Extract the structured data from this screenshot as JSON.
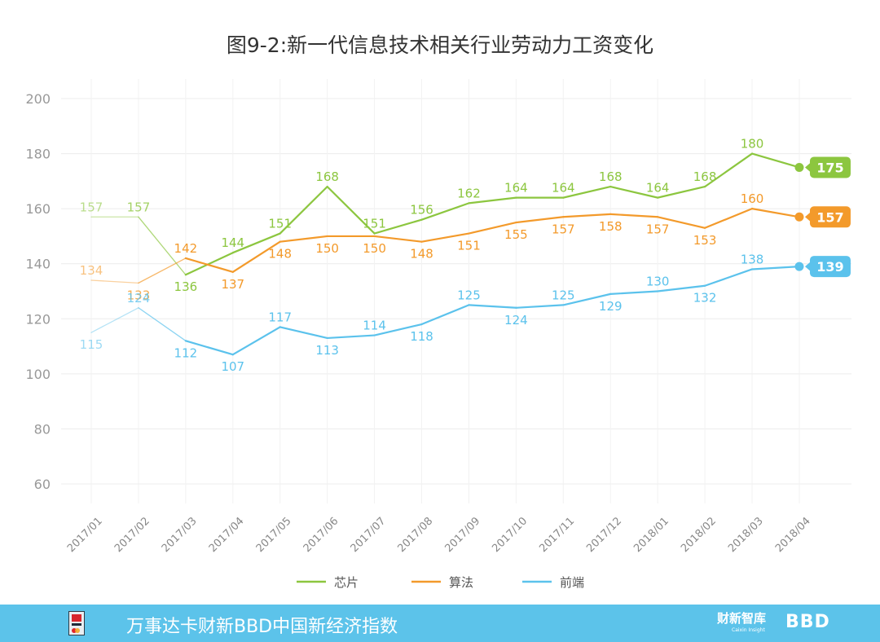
{
  "chart_data": {
    "type": "line",
    "title": "图9-2:新一代信息技术相关行业劳动力工资变化",
    "categories": [
      "2017/01",
      "2017/02",
      "2017/03",
      "2017/04",
      "2017/05",
      "2017/06",
      "2017/07",
      "2017/08",
      "2017/09",
      "2017/10",
      "2017/11",
      "2017/12",
      "2018/01",
      "2018/02",
      "2018/03",
      "2018/04"
    ],
    "ylim": [
      60,
      200
    ],
    "yticks": [
      60,
      80,
      100,
      120,
      140,
      160,
      180,
      200
    ],
    "grid": true,
    "legend_position": "bottom",
    "series": [
      {
        "name": "芯片",
        "color": "#8cc63f",
        "values": [
          157,
          157,
          136,
          144,
          151,
          168,
          151,
          156,
          162,
          164,
          164,
          168,
          164,
          168,
          180,
          175
        ]
      },
      {
        "name": "算法",
        "color": "#f39a2b",
        "values": [
          134,
          133,
          142,
          137,
          148,
          150,
          150,
          148,
          151,
          155,
          157,
          158,
          157,
          153,
          160,
          157
        ]
      },
      {
        "name": "前端",
        "color": "#5bc2ec",
        "values": [
          115,
          124,
          112,
          107,
          117,
          113,
          114,
          118,
          125,
          124,
          125,
          129,
          130,
          132,
          138,
          139
        ]
      }
    ]
  },
  "footer": {
    "text": "万事达卡财新BBD中国新经济指数",
    "brand_caixin": "财新智库",
    "brand_caixin_sub": "Caixin Insight",
    "brand_bbd": "BBD"
  }
}
